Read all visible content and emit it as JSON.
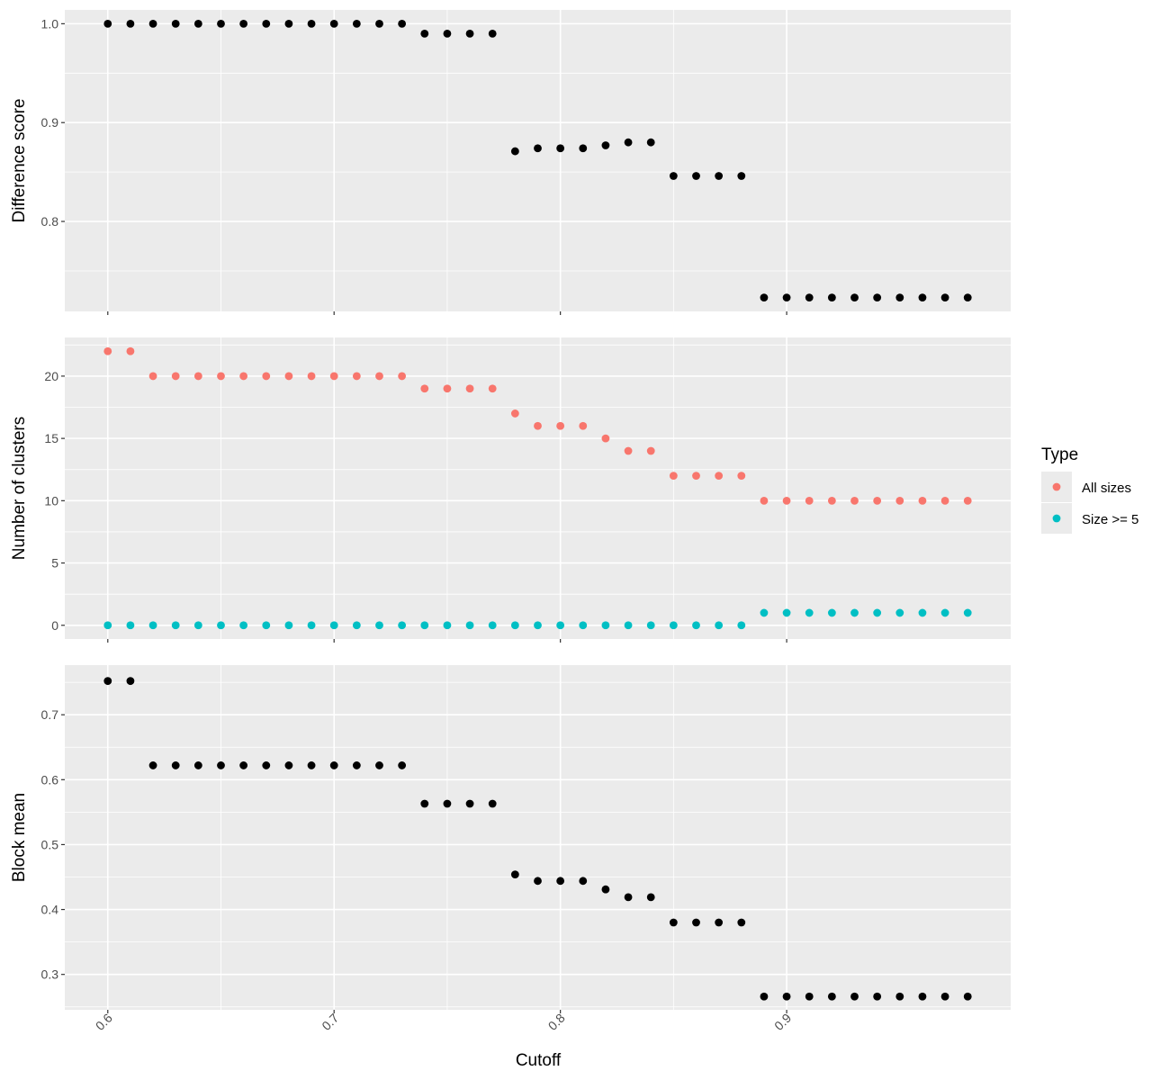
{
  "chart_data": {
    "type": "scatter",
    "xlabel": "Cutoff",
    "x_ticks": [
      "0.6",
      "0.7",
      "0.8",
      "0.9"
    ],
    "x_tick_values": [
      0.6,
      0.7,
      0.8,
      0.9
    ],
    "xlim": [
      0.581,
      0.999
    ],
    "x": [
      0.6,
      0.61,
      0.62,
      0.63,
      0.64,
      0.65,
      0.66,
      0.67,
      0.68,
      0.69,
      0.7,
      0.71,
      0.72,
      0.73,
      0.74,
      0.75,
      0.76,
      0.77,
      0.78,
      0.79,
      0.8,
      0.81,
      0.82,
      0.83,
      0.84,
      0.85,
      0.86,
      0.87,
      0.88,
      0.89,
      0.9,
      0.91,
      0.92,
      0.93,
      0.94,
      0.95,
      0.96,
      0.97,
      0.98
    ],
    "panels": [
      {
        "ylabel": "Difference score",
        "ylim": [
          0.709,
          1.014
        ],
        "y_ticks": [
          "0.8",
          "0.9",
          "1.0"
        ],
        "y_tick_values": [
          0.8,
          0.9,
          1.0
        ],
        "y_minor": [
          0.75,
          0.85,
          0.95
        ],
        "series": [
          {
            "color": "#000000",
            "values": [
              1.0,
              1.0,
              1.0,
              1.0,
              1.0,
              1.0,
              1.0,
              1.0,
              1.0,
              1.0,
              1.0,
              1.0,
              1.0,
              1.0,
              0.99,
              0.99,
              0.99,
              0.99,
              0.871,
              0.874,
              0.874,
              0.874,
              0.877,
              0.88,
              0.88,
              0.846,
              0.846,
              0.846,
              0.846,
              0.723,
              0.723,
              0.723,
              0.723,
              0.723,
              0.723,
              0.723,
              0.723,
              0.723,
              0.723
            ]
          }
        ]
      },
      {
        "ylabel": "Number of clusters",
        "ylim": [
          -1.1,
          23.1
        ],
        "y_ticks": [
          "0",
          "5",
          "10",
          "15",
          "20"
        ],
        "y_tick_values": [
          0,
          5,
          10,
          15,
          20
        ],
        "y_minor": [
          2.5,
          7.5,
          12.5,
          17.5,
          22.5
        ],
        "series": [
          {
            "name": "All sizes",
            "color": "#F8766D",
            "values": [
              22,
              22,
              20,
              20,
              20,
              20,
              20,
              20,
              20,
              20,
              20,
              20,
              20,
              20,
              19,
              19,
              19,
              19,
              17,
              16,
              16,
              16,
              15,
              14,
              14,
              12,
              12,
              12,
              12,
              10,
              10,
              10,
              10,
              10,
              10,
              10,
              10,
              10,
              10
            ]
          },
          {
            "name": "Size >= 5",
            "color": "#00BFC4",
            "values": [
              0,
              0,
              0,
              0,
              0,
              0,
              0,
              0,
              0,
              0,
              0,
              0,
              0,
              0,
              0,
              0,
              0,
              0,
              0,
              0,
              0,
              0,
              0,
              0,
              0,
              0,
              0,
              0,
              0,
              1,
              1,
              1,
              1,
              1,
              1,
              1,
              1,
              1,
              1
            ]
          }
        ]
      },
      {
        "ylabel": "Block mean",
        "ylim": [
          0.2455,
          0.7765
        ],
        "y_ticks": [
          "0.3",
          "0.4",
          "0.5",
          "0.6",
          "0.7"
        ],
        "y_tick_values": [
          0.3,
          0.4,
          0.5,
          0.6,
          0.7
        ],
        "y_minor": [
          0.25,
          0.35,
          0.45,
          0.55,
          0.65,
          0.75
        ],
        "series": [
          {
            "color": "#000000",
            "values": [
              0.752,
              0.752,
              0.622,
              0.622,
              0.622,
              0.622,
              0.622,
              0.622,
              0.622,
              0.622,
              0.622,
              0.622,
              0.622,
              0.622,
              0.563,
              0.563,
              0.563,
              0.563,
              0.454,
              0.444,
              0.444,
              0.444,
              0.431,
              0.419,
              0.419,
              0.38,
              0.38,
              0.38,
              0.38,
              0.266,
              0.266,
              0.266,
              0.266,
              0.266,
              0.266,
              0.266,
              0.266,
              0.266,
              0.266
            ]
          }
        ]
      }
    ],
    "legend": {
      "title": "Type",
      "position": "right",
      "entries": [
        {
          "label": "All sizes",
          "color": "#F8766D"
        },
        {
          "label": "Size >= 5",
          "color": "#00BFC4"
        }
      ]
    },
    "grid": true,
    "panel_background": "#EBEBEB",
    "grid_color": "#FFFFFF"
  }
}
